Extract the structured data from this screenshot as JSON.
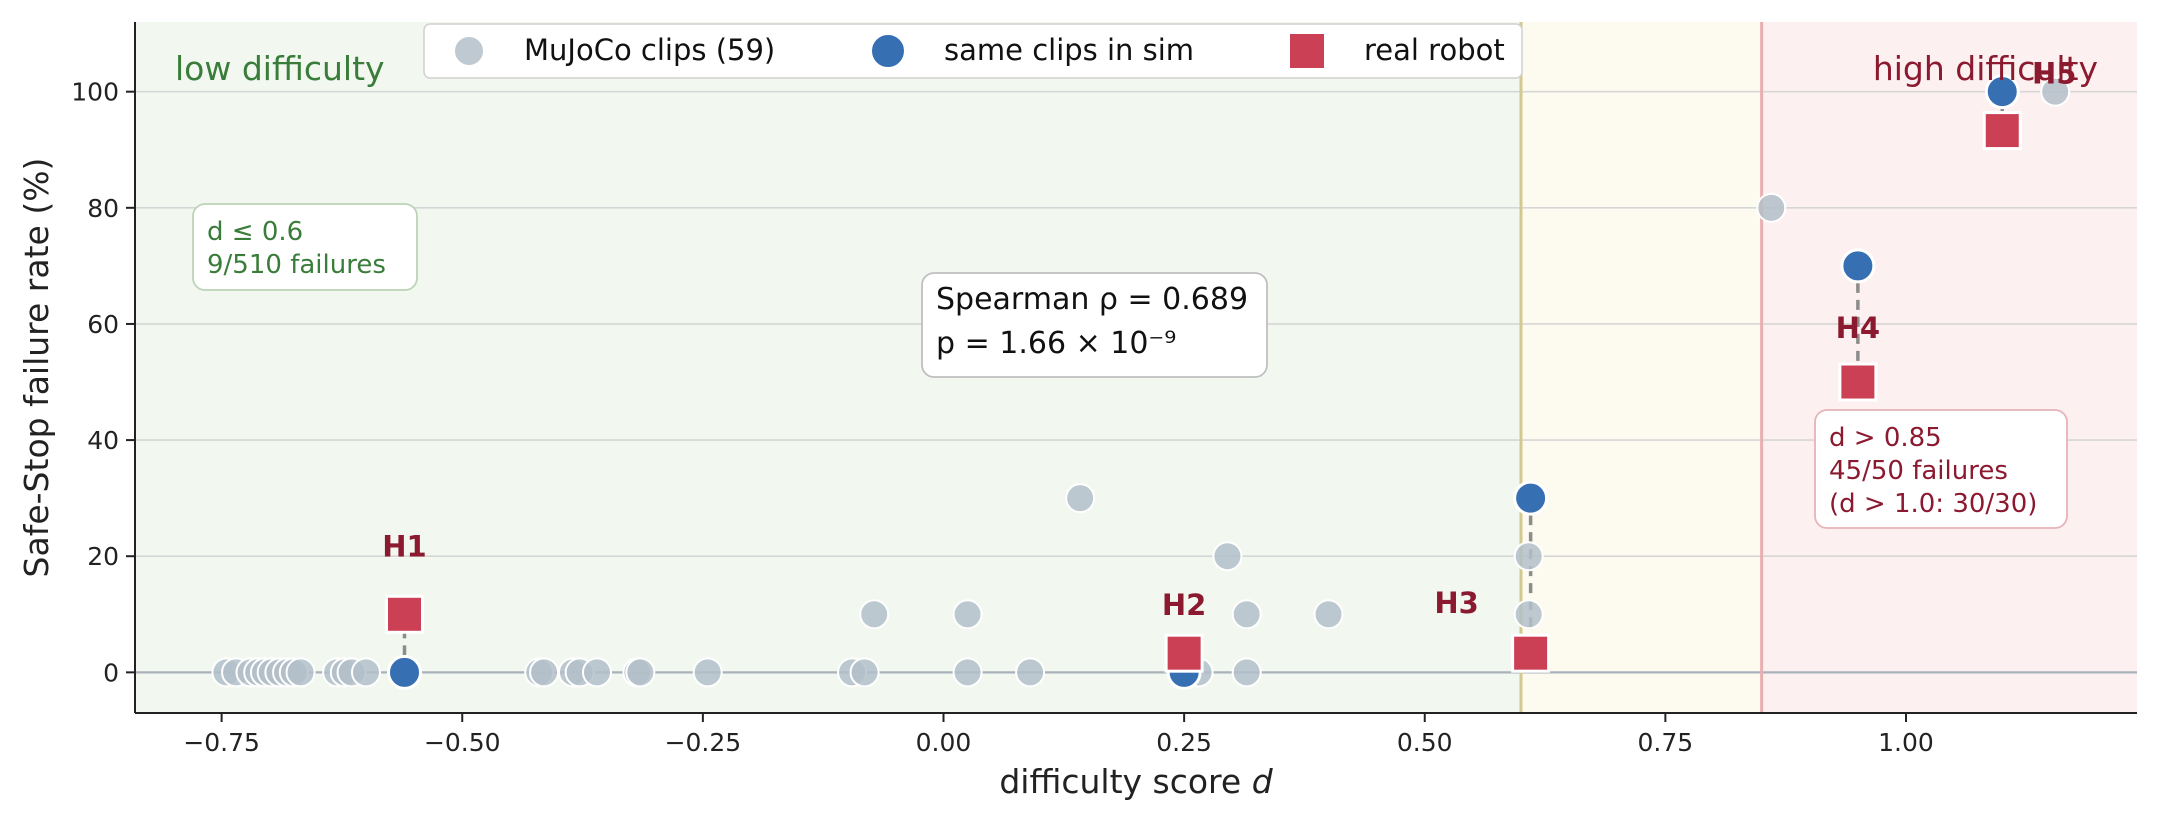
{
  "chart_data": {
    "type": "scatter",
    "xlabel": "difficulty score d",
    "ylabel": "Safe-Stop failure rate (%)",
    "xlim": [
      -0.84,
      1.24
    ],
    "ylim": [
      -7,
      112
    ],
    "xticks": [
      -0.75,
      -0.5,
      -0.25,
      0.0,
      0.25,
      0.5,
      0.75,
      1.0
    ],
    "xtick_labels": [
      "−0.75",
      "−0.50",
      "−0.25",
      "0.00",
      "0.25",
      "0.50",
      "0.75",
      "1.00"
    ],
    "yticks": [
      0,
      20,
      40,
      60,
      80,
      100
    ],
    "ytick_labels": [
      "0",
      "20",
      "40",
      "60",
      "80",
      "100"
    ],
    "grid": "horizontal",
    "thresholds": [
      0.6,
      0.85
    ],
    "regions": [
      {
        "name": "low difficulty",
        "from": -0.84,
        "to": 0.6,
        "color": "#f2f8f0"
      },
      {
        "name": "mid",
        "from": 0.6,
        "to": 0.85,
        "color": "#fdfbef"
      },
      {
        "name": "high difficulty",
        "from": 0.85,
        "to": 1.24,
        "color": "#fcf1f0"
      }
    ],
    "region_labels": {
      "low": "low difficulty",
      "high": "high difficulty"
    },
    "legend": {
      "placement": "top",
      "entries": [
        "MuJoCo clips (59)",
        "same clips in sim",
        "real robot"
      ]
    },
    "series": [
      {
        "name": "MuJoCo clips (59)",
        "marker": "circle",
        "color": "#b3bfc9",
        "points": [
          [
            -0.745,
            0
          ],
          [
            -0.735,
            0
          ],
          [
            -0.72,
            0
          ],
          [
            -0.712,
            0
          ],
          [
            -0.705,
            0
          ],
          [
            -0.698,
            0
          ],
          [
            -0.69,
            0
          ],
          [
            -0.682,
            0
          ],
          [
            -0.675,
            0
          ],
          [
            -0.668,
            0
          ],
          [
            -0.63,
            0
          ],
          [
            -0.622,
            0
          ],
          [
            -0.615,
            0
          ],
          [
            -0.6,
            0
          ],
          [
            -0.42,
            0
          ],
          [
            -0.415,
            0
          ],
          [
            -0.385,
            0
          ],
          [
            -0.378,
            0
          ],
          [
            -0.36,
            0
          ],
          [
            -0.318,
            0
          ],
          [
            -0.315,
            0
          ],
          [
            -0.245,
            0
          ],
          [
            -0.095,
            0
          ],
          [
            -0.082,
            0
          ],
          [
            0.025,
            0
          ],
          [
            0.09,
            0
          ],
          [
            0.265,
            0
          ],
          [
            0.315,
            0
          ],
          [
            -0.072,
            10
          ],
          [
            0.025,
            10
          ],
          [
            0.315,
            10
          ],
          [
            0.4,
            10
          ],
          [
            0.608,
            10
          ],
          [
            0.295,
            20
          ],
          [
            0.608,
            20
          ],
          [
            0.142,
            30
          ],
          [
            0.86,
            80
          ],
          [
            1.155,
            100
          ]
        ]
      },
      {
        "name": "same clips in sim",
        "marker": "circle",
        "color": "#3670b3",
        "points": [
          {
            "x": -0.56,
            "y": 0,
            "label": "H1"
          },
          {
            "x": 0.25,
            "y": 0,
            "label": "H2"
          },
          {
            "x": 0.61,
            "y": 30,
            "label": "H3"
          },
          {
            "x": 0.95,
            "y": 70,
            "label": "H4"
          },
          {
            "x": 1.1,
            "y": 100,
            "label": "H5"
          }
        ]
      },
      {
        "name": "real robot",
        "marker": "square",
        "color": "#cc4055",
        "points": [
          {
            "x": -0.56,
            "y": 10,
            "label": "H1"
          },
          {
            "x": 0.25,
            "y": 3.3,
            "label": "H2"
          },
          {
            "x": 0.61,
            "y": 3.3,
            "label": "H3"
          },
          {
            "x": 0.95,
            "y": 50,
            "label": "H4"
          },
          {
            "x": 1.1,
            "y": 93.3,
            "label": "H5"
          }
        ]
      }
    ],
    "point_labels": [
      "H1",
      "H2",
      "H3",
      "H4",
      "H5"
    ],
    "annotations": {
      "low_box": [
        "d ≤ 0.6",
        "9/510 failures"
      ],
      "stats_box": [
        "Spearman ρ = 0.689",
        "p = 1.66 × 10⁻⁹"
      ],
      "high_box": [
        "d > 0.85",
        "45/50 failures",
        "(d > 1.0: 30/30)"
      ]
    },
    "colors": {
      "low": "#3a7d3a",
      "high": "#8b1a30",
      "label": "#8b1a30",
      "threshold_low": "#d2c990",
      "threshold_high": "#e8aeb0"
    }
  }
}
